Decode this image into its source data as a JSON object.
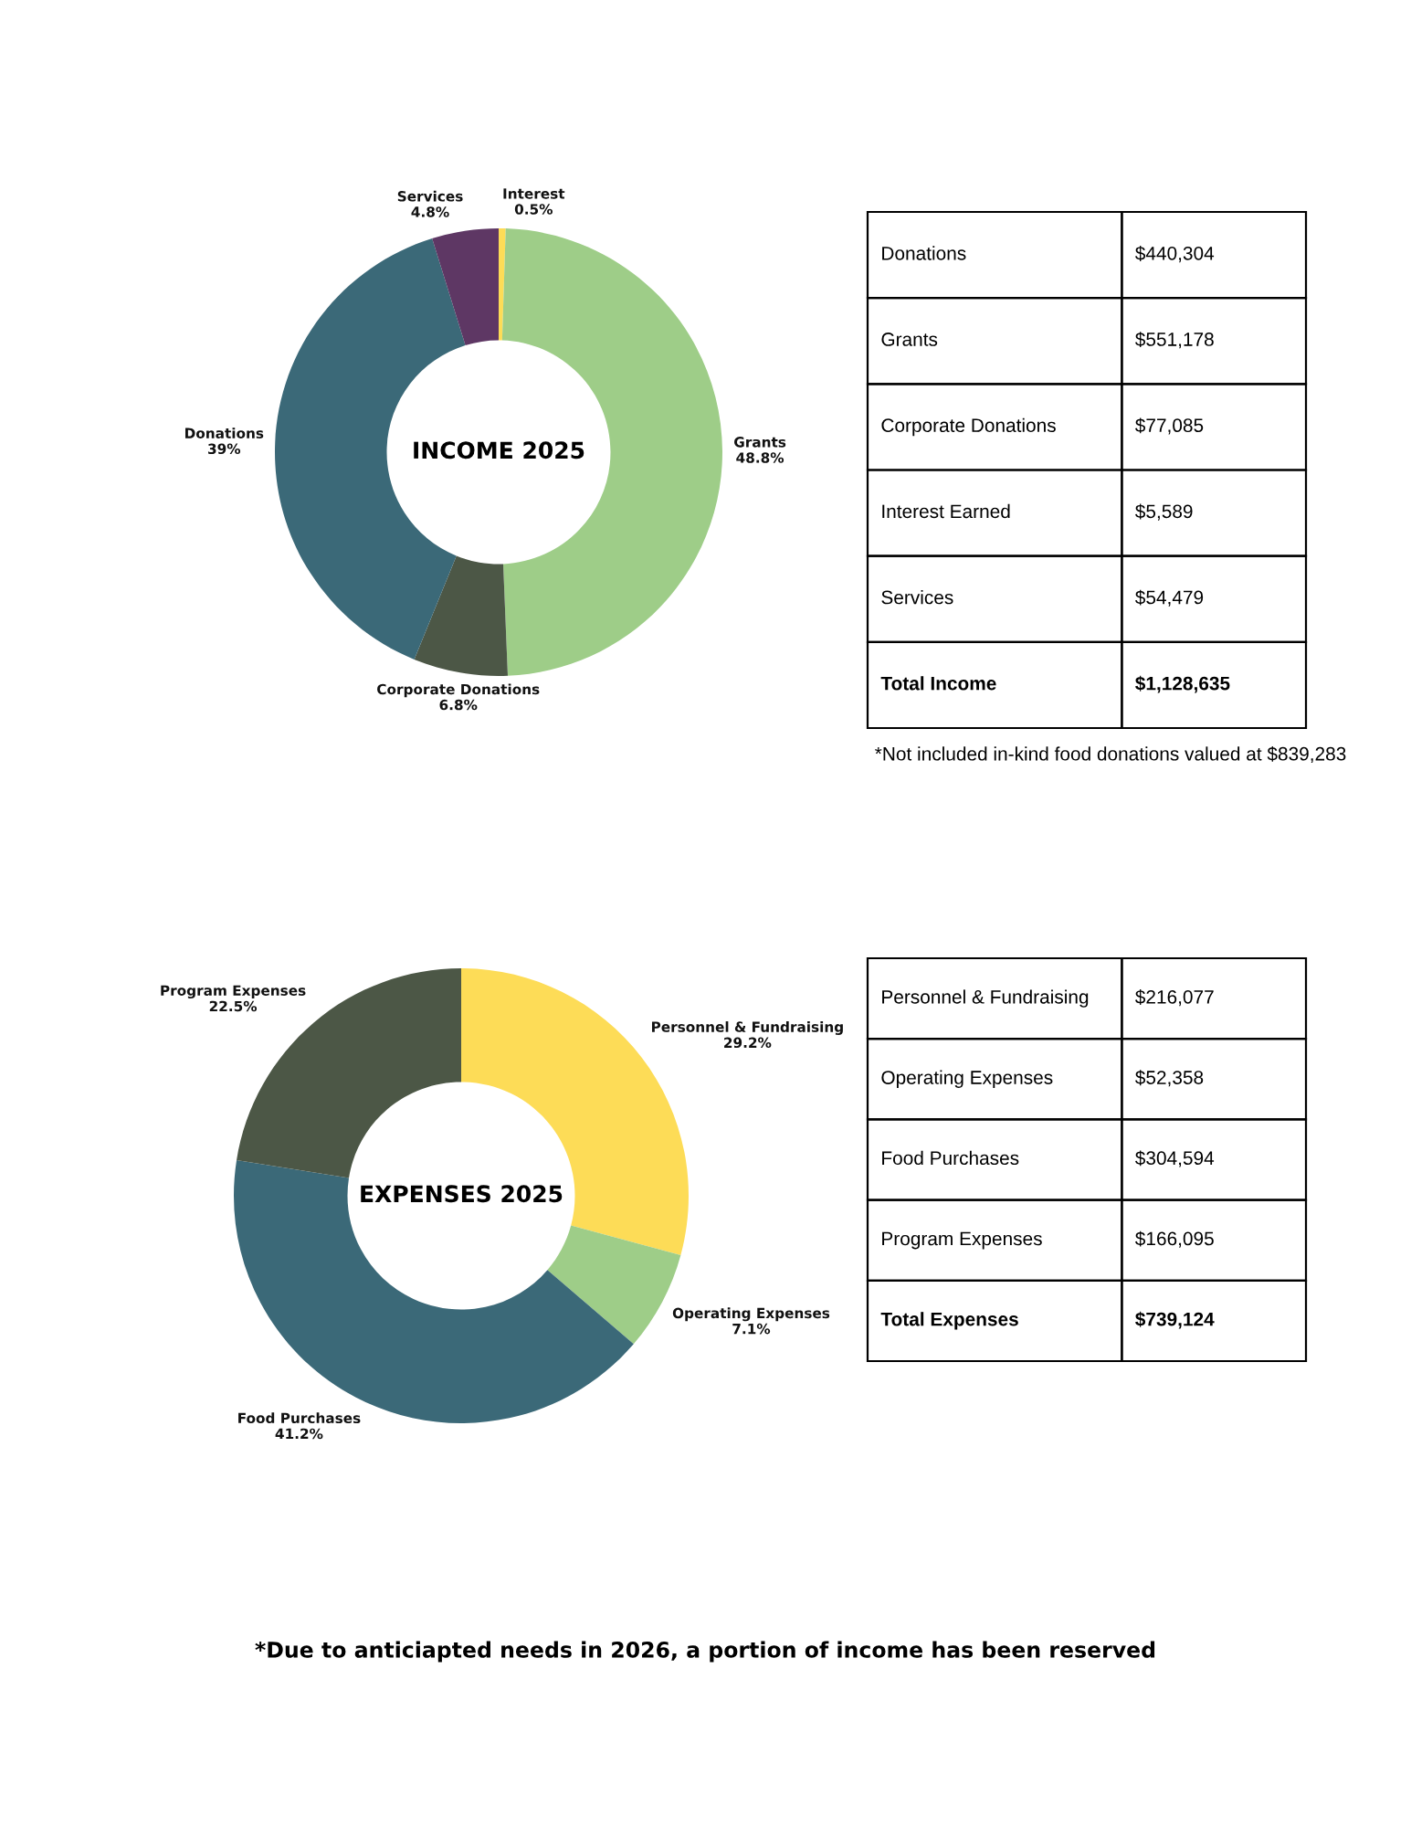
{
  "chart_data": [
    {
      "type": "donut",
      "title": "INCOME 2025",
      "categories": [
        "Interest",
        "Grants",
        "Corporate Donations",
        "Donations",
        "Services"
      ],
      "values": [
        0.5,
        48.8,
        6.8,
        39,
        4.8
      ],
      "colors": [
        "#fddc57",
        "#9ecd88",
        "#4c5746",
        "#3b6978",
        "#5e3764"
      ],
      "value_labels": [
        "0.5%",
        "48.8%",
        "6.8%",
        "39%",
        "4.8%"
      ]
    },
    {
      "type": "other",
      "categories": [
        "Donations",
        "Grants",
        "Corporate Donations",
        "Interest Earned",
        "Services",
        "Total Income"
      ],
      "value_labels": [
        "$440,304",
        "$551,178",
        "$77,085",
        "$5,589",
        "$54,479",
        "$1,128,635"
      ],
      "annotations": [
        "*Not included in-kind food donations valued at $839,283"
      ]
    },
    {
      "type": "donut",
      "title": "EXPENSES 2025",
      "categories": [
        "Personnel & Fundraising",
        "Operating Expenses",
        "Food Purchases",
        "Program Expenses"
      ],
      "values": [
        29.2,
        7.1,
        41.2,
        22.5
      ],
      "colors": [
        "#fddc57",
        "#9ecd88",
        "#3b6978",
        "#4c5746"
      ],
      "value_labels": [
        "29.2%",
        "7.1%",
        "41.2%",
        "22.5%"
      ]
    },
    {
      "type": "other",
      "categories": [
        "Personnel & Fundraising",
        "Operating Expenses",
        "Food Purchases",
        "Program Expenses",
        "Total Expenses"
      ],
      "value_labels": [
        "$216,077",
        "$52,358",
        "$304,594",
        "$166,095",
        "$739,124"
      ]
    },
    {
      "type": "other",
      "annotations": [
        "*Due to anticiapted needs in 2026, a portion of income has been reserved"
      ]
    }
  ]
}
